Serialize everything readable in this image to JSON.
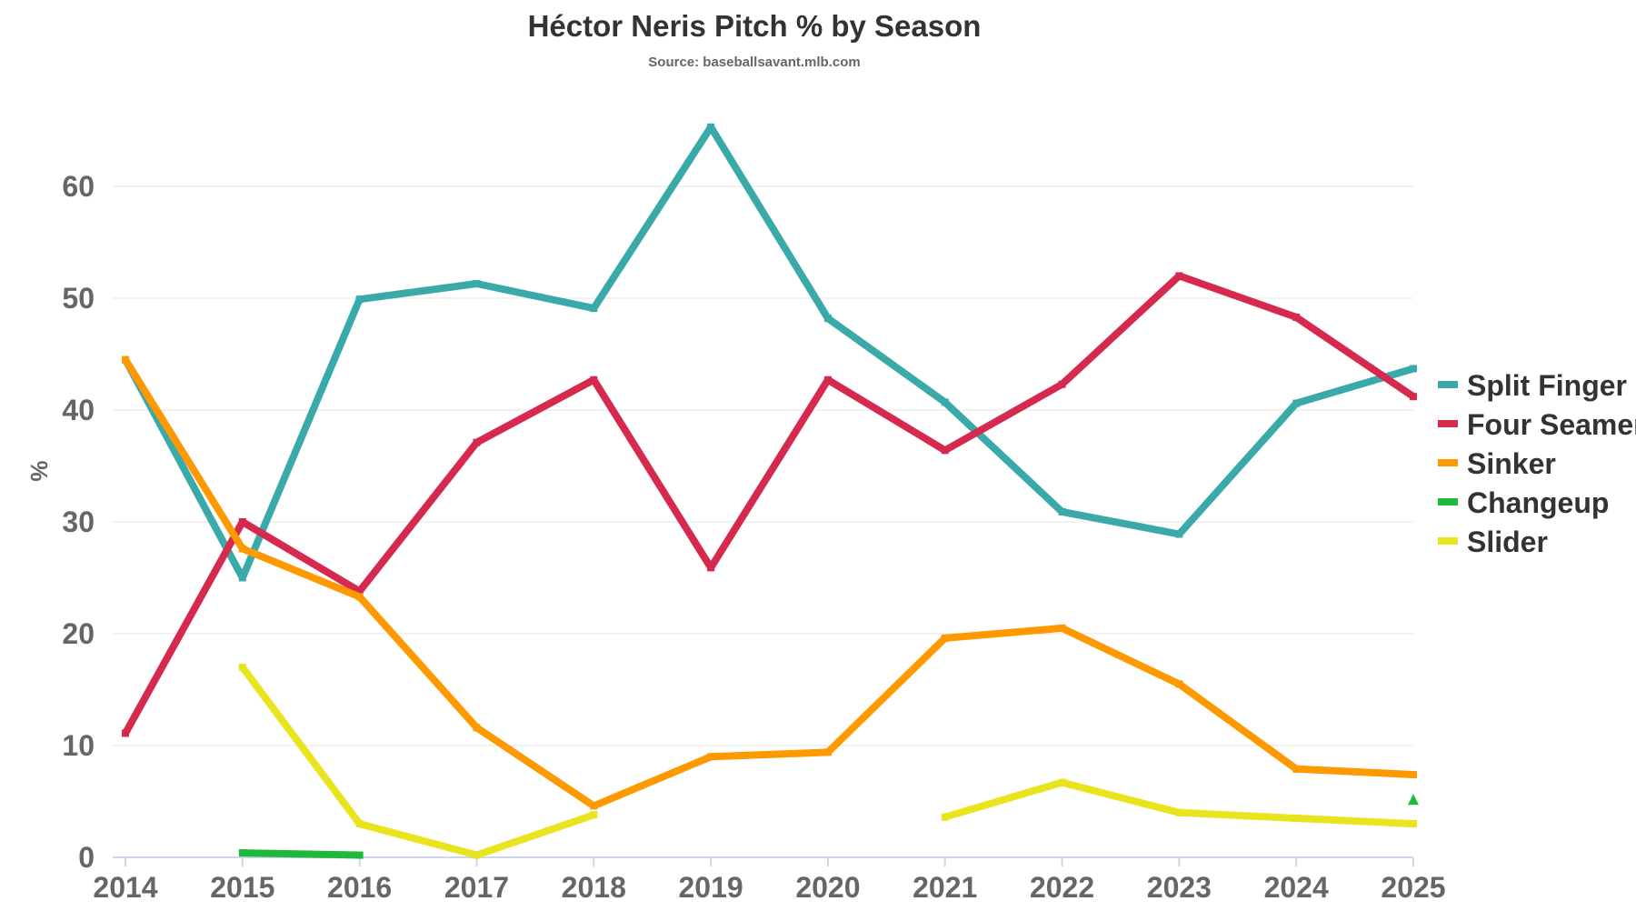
{
  "chart_data": {
    "type": "line",
    "title": "Héctor Neris Pitch % by Season",
    "subtitle": "Source: baseballsavant.mlb.com",
    "xlabel": "",
    "ylabel": "%",
    "x": [
      2014,
      2015,
      2016,
      2017,
      2018,
      2019,
      2020,
      2021,
      2022,
      2023,
      2024,
      2025
    ],
    "ylim": [
      0,
      70
    ],
    "yticks": [
      0,
      10,
      20,
      30,
      40,
      50,
      60
    ],
    "grid": true,
    "legend_position": "right",
    "series": [
      {
        "name": "Split Finger",
        "color": "#3aa9a9",
        "values": [
          44.5,
          25.0,
          49.9,
          51.3,
          49.1,
          65.3,
          48.2,
          40.7,
          30.9,
          28.9,
          40.6,
          43.7
        ]
      },
      {
        "name": "Four Seamer",
        "color": "#d6294e",
        "values": [
          11.1,
          30.0,
          23.8,
          37.1,
          42.7,
          25.9,
          42.7,
          36.4,
          42.3,
          52.0,
          48.3,
          41.2
        ]
      },
      {
        "name": "Sinker",
        "color": "#ff9900",
        "values": [
          44.5,
          27.6,
          23.3,
          11.6,
          4.6,
          9.0,
          9.4,
          19.6,
          20.5,
          15.5,
          7.9,
          7.4
        ]
      },
      {
        "name": "Changeup",
        "color": "#1fb83a",
        "values": [
          null,
          0.4,
          0.2,
          null,
          null,
          null,
          null,
          null,
          null,
          null,
          null,
          5.1
        ]
      },
      {
        "name": "Slider",
        "color": "#e8e41e",
        "values": [
          null,
          17.0,
          3.0,
          0.2,
          3.8,
          null,
          null,
          3.6,
          6.7,
          4.0,
          3.5,
          3.0
        ]
      }
    ]
  }
}
